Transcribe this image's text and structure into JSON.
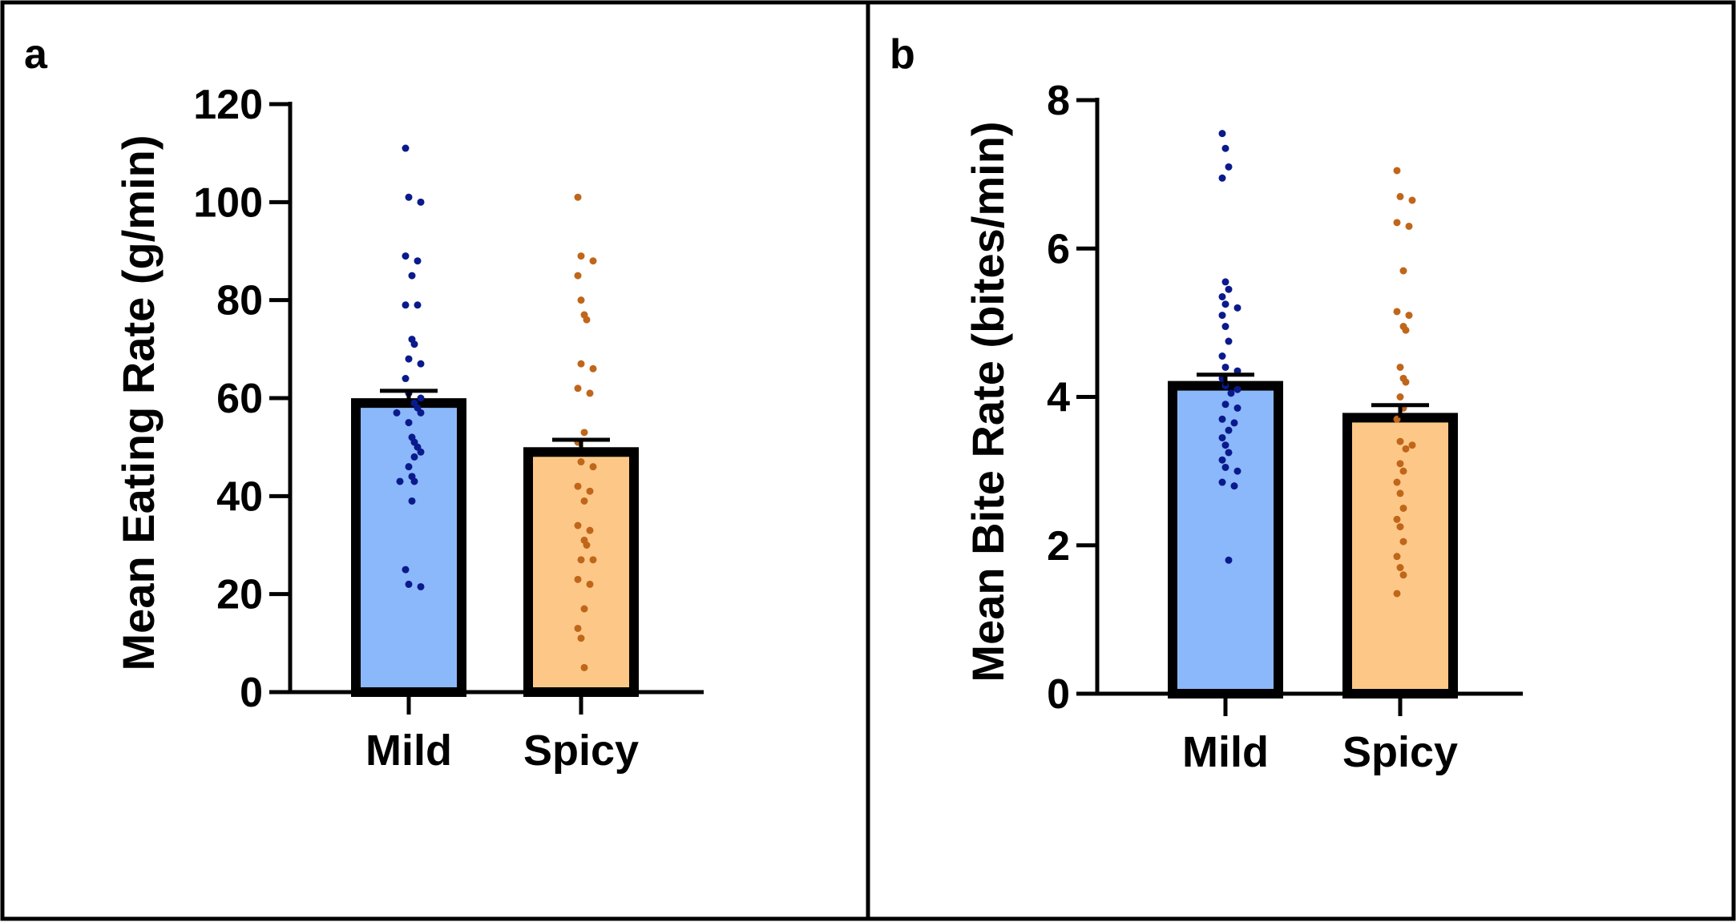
{
  "chart_data": [
    {
      "panel": "a",
      "type": "bar",
      "categories": [
        "Mild",
        "Spicy"
      ],
      "values": [
        59,
        49
      ],
      "errors": [
        2.5,
        2.5
      ],
      "ylabel": "Mean Eating Rate (g/min)",
      "xlabel": "",
      "ylim": [
        0,
        120
      ],
      "yticks": [
        0,
        20,
        40,
        60,
        80,
        100,
        120
      ],
      "colors": [
        "#8ab8fa",
        "#fdc887"
      ],
      "point_colors": [
        "#0a1a8c",
        "#c0661b"
      ],
      "points": [
        [
          111,
          101,
          100,
          89,
          88,
          85,
          79,
          79,
          72,
          71,
          68,
          67,
          64,
          61,
          60,
          59,
          58,
          57,
          57,
          55,
          52,
          51,
          50,
          49,
          48,
          46,
          44,
          43,
          43,
          39,
          25,
          22,
          21.5
        ],
        [
          101,
          89,
          88,
          85,
          80,
          77,
          76,
          67,
          66,
          62,
          61,
          53,
          51,
          47,
          46,
          42,
          41,
          39,
          34,
          33,
          31,
          30,
          27,
          27,
          23,
          22,
          17,
          13,
          11,
          5
        ]
      ]
    },
    {
      "panel": "b",
      "type": "bar",
      "categories": [
        "Mild",
        "Spicy"
      ],
      "values": [
        4.15,
        3.72
      ],
      "errors": [
        0.15,
        0.17
      ],
      "ylabel": "Mean Bite Rate (bites/min)",
      "xlabel": "",
      "ylim": [
        0,
        8
      ],
      "yticks": [
        0,
        2,
        4,
        6,
        8
      ],
      "colors": [
        "#8ab8fa",
        "#fdc887"
      ],
      "point_colors": [
        "#0a1a8c",
        "#c0661b"
      ],
      "points": [
        [
          7.55,
          7.35,
          7.1,
          6.95,
          5.55,
          5.45,
          5.35,
          5.25,
          5.2,
          5.1,
          4.95,
          4.75,
          4.55,
          4.4,
          4.35,
          4.25,
          4.15,
          4.1,
          4.05,
          3.9,
          3.85,
          3.7,
          3.65,
          3.55,
          3.45,
          3.35,
          3.25,
          3.15,
          3.05,
          3.0,
          2.85,
          2.8,
          1.8
        ],
        [
          7.05,
          6.7,
          6.65,
          6.35,
          6.3,
          5.7,
          5.15,
          5.1,
          4.95,
          4.9,
          4.4,
          4.25,
          4.2,
          4.0,
          3.85,
          3.7,
          3.4,
          3.35,
          3.3,
          3.1,
          3.0,
          2.85,
          2.7,
          2.5,
          2.35,
          2.25,
          2.05,
          1.85,
          1.7,
          1.6,
          1.35
        ]
      ]
    }
  ]
}
